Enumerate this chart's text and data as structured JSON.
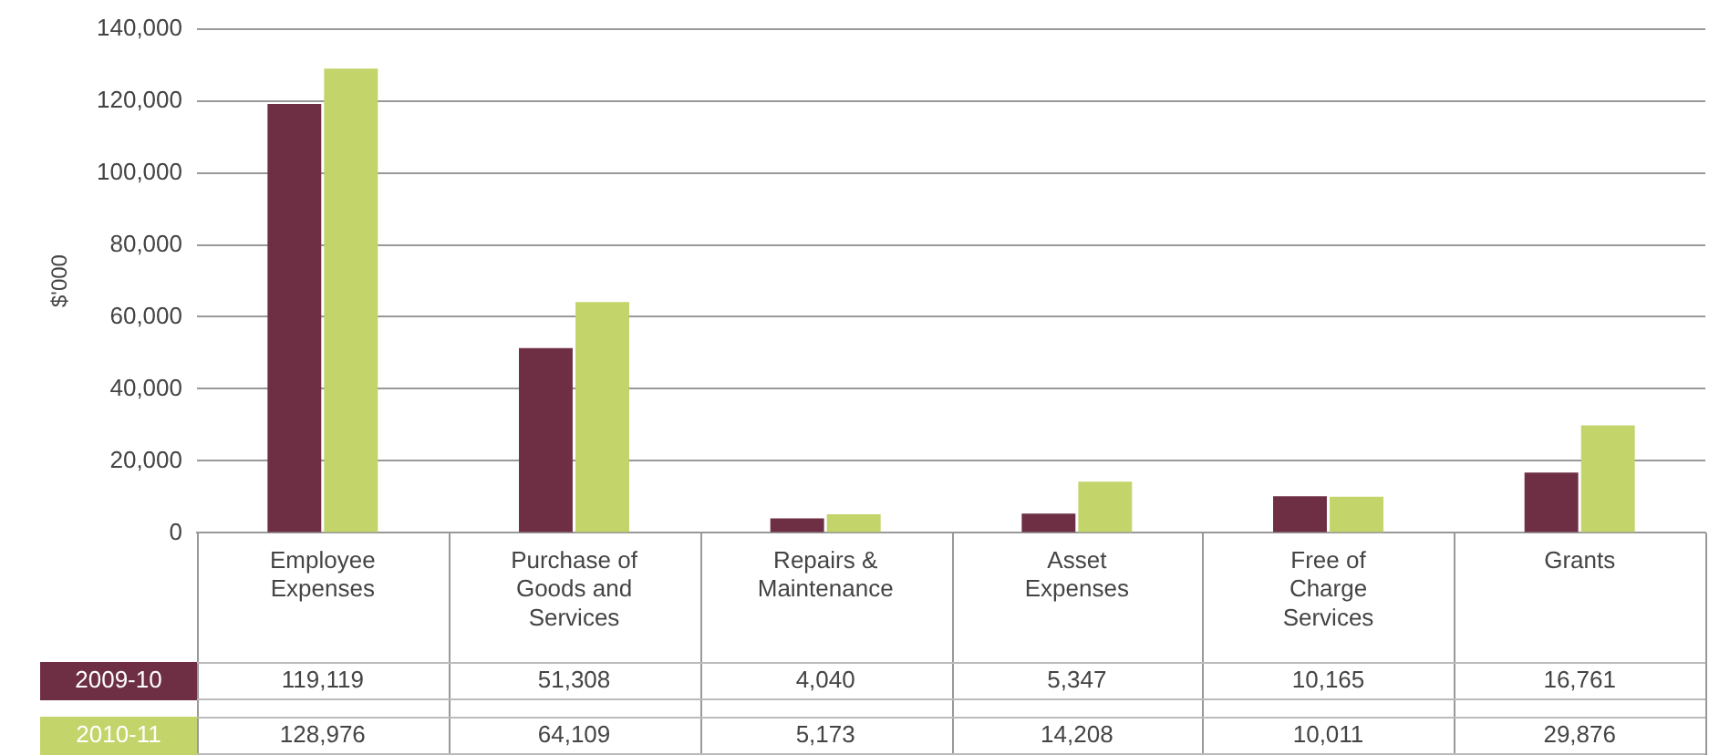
{
  "chart_data": {
    "type": "bar",
    "ylabel": "$'000",
    "categories": [
      "Employee Expenses",
      "Purchase of Goods and Services",
      "Repairs & Maintenance",
      "Asset Expenses",
      "Free of Charge Services",
      "Grants"
    ],
    "series": [
      {
        "name": "2009-10",
        "color": "#6e2f45",
        "values": [
          119119,
          51308,
          4040,
          5347,
          10165,
          16761
        ],
        "value_labels": [
          "119,119",
          "51,308",
          "4,040",
          "5,347",
          "10,165",
          "16,761"
        ]
      },
      {
        "name": "2010-11",
        "color": "#c3d46a",
        "values": [
          128976,
          64109,
          5173,
          14208,
          10011,
          29876
        ],
        "value_labels": [
          "128,976",
          "64,109",
          "5,173",
          "14,208",
          "10,011",
          "29,876"
        ]
      }
    ],
    "ylim": [
      0,
      140000
    ],
    "yticks": [
      {
        "value": 0,
        "label": "0"
      },
      {
        "value": 20000,
        "label": "20,000"
      },
      {
        "value": 40000,
        "label": "40,000"
      },
      {
        "value": 60000,
        "label": "60,000"
      },
      {
        "value": 80000,
        "label": "80,000"
      },
      {
        "value": 100000,
        "label": "100,000"
      },
      {
        "value": 120000,
        "label": "120,000"
      },
      {
        "value": 140000,
        "label": "140,000"
      }
    ],
    "grid": "y"
  }
}
